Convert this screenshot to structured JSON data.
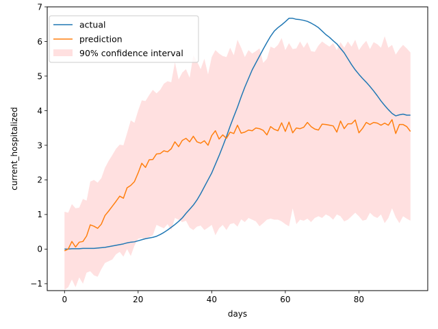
{
  "chart_data": {
    "type": "line",
    "title": "",
    "xlabel": "days",
    "ylabel": "current_hospitalized",
    "xlim": [
      -4.7,
      98.7
    ],
    "ylim": [
      -1.2,
      7.0
    ],
    "x_ticks": [
      0,
      20,
      40,
      60,
      80
    ],
    "y_ticks": [
      -1,
      0,
      1,
      2,
      3,
      4,
      5,
      6,
      7
    ],
    "grid": false,
    "legend_position": "upper-left",
    "series": [
      {
        "name": "actual",
        "color": "#1f77b4",
        "x": [
          0,
          1,
          2,
          3,
          4,
          5,
          6,
          7,
          8,
          9,
          10,
          11,
          12,
          13,
          14,
          15,
          16,
          17,
          18,
          19,
          20,
          21,
          22,
          23,
          24,
          25,
          26,
          27,
          28,
          29,
          30,
          31,
          32,
          33,
          34,
          35,
          36,
          37,
          38,
          39,
          40,
          41,
          42,
          43,
          44,
          45,
          46,
          47,
          48,
          49,
          50,
          51,
          52,
          53,
          54,
          55,
          56,
          57,
          58,
          59,
          60,
          61,
          62,
          63,
          64,
          65,
          66,
          67,
          68,
          69,
          70,
          71,
          72,
          73,
          74,
          75,
          76,
          77,
          78,
          79,
          80,
          81,
          82,
          83,
          84,
          85,
          86,
          87,
          88,
          89,
          90,
          91,
          92,
          93,
          94
        ],
        "values": [
          0,
          0,
          0.01,
          0.01,
          0.01,
          0.02,
          0.02,
          0.02,
          0.02,
          0.03,
          0.04,
          0.05,
          0.07,
          0.09,
          0.11,
          0.13,
          0.15,
          0.18,
          0.2,
          0.21,
          0.24,
          0.27,
          0.3,
          0.32,
          0.34,
          0.37,
          0.42,
          0.48,
          0.55,
          0.63,
          0.71,
          0.8,
          0.9,
          1.03,
          1.15,
          1.27,
          1.42,
          1.6,
          1.8,
          2.0,
          2.2,
          2.45,
          2.7,
          2.97,
          3.25,
          3.55,
          3.83,
          4.1,
          4.4,
          4.68,
          4.93,
          5.18,
          5.38,
          5.58,
          5.78,
          5.97,
          6.15,
          6.3,
          6.4,
          6.48,
          6.57,
          6.67,
          6.67,
          6.64,
          6.63,
          6.61,
          6.58,
          6.53,
          6.47,
          6.4,
          6.3,
          6.2,
          6.12,
          6.02,
          5.93,
          5.8,
          5.67,
          5.5,
          5.33,
          5.18,
          5.05,
          4.93,
          4.82,
          4.7,
          4.57,
          4.43,
          4.28,
          4.15,
          4.03,
          3.92,
          3.85,
          3.88,
          3.9,
          3.87,
          3.87
        ]
      },
      {
        "name": "prediction",
        "color": "#ff7f0e",
        "x": [
          0,
          1,
          2,
          3,
          4,
          5,
          6,
          7,
          8,
          9,
          10,
          11,
          12,
          13,
          14,
          15,
          16,
          17,
          18,
          19,
          20,
          21,
          22,
          23,
          24,
          25,
          26,
          27,
          28,
          29,
          30,
          31,
          32,
          33,
          34,
          35,
          36,
          37,
          38,
          39,
          40,
          41,
          42,
          43,
          44,
          45,
          46,
          47,
          48,
          49,
          50,
          51,
          52,
          53,
          54,
          55,
          56,
          57,
          58,
          59,
          60,
          61,
          62,
          63,
          64,
          65,
          66,
          67,
          68,
          69,
          70,
          71,
          72,
          73,
          74,
          75,
          76,
          77,
          78,
          79,
          80,
          81,
          82,
          83,
          84,
          85,
          86,
          87,
          88,
          89,
          90,
          91,
          92,
          93,
          94
        ],
        "values": [
          -0.05,
          0.0,
          0.22,
          0.06,
          0.2,
          0.22,
          0.38,
          0.7,
          0.66,
          0.6,
          0.72,
          0.97,
          1.1,
          1.24,
          1.38,
          1.53,
          1.47,
          1.77,
          1.84,
          1.95,
          2.2,
          2.48,
          2.36,
          2.58,
          2.59,
          2.75,
          2.76,
          2.84,
          2.81,
          2.9,
          3.1,
          2.96,
          3.14,
          3.2,
          3.1,
          3.26,
          3.1,
          3.06,
          3.13,
          3.0,
          3.28,
          3.42,
          3.18,
          3.3,
          3.2,
          3.38,
          3.34,
          3.58,
          3.35,
          3.38,
          3.44,
          3.42,
          3.5,
          3.48,
          3.43,
          3.3,
          3.54,
          3.46,
          3.42,
          3.65,
          3.4,
          3.67,
          3.36,
          3.5,
          3.48,
          3.52,
          3.66,
          3.54,
          3.47,
          3.44,
          3.61,
          3.6,
          3.58,
          3.56,
          3.38,
          3.7,
          3.48,
          3.62,
          3.62,
          3.73,
          3.36,
          3.49,
          3.66,
          3.6,
          3.66,
          3.64,
          3.58,
          3.64,
          3.58,
          3.74,
          3.34,
          3.6,
          3.6,
          3.54,
          3.4
        ]
      }
    ],
    "band": {
      "name": "90% confidence interval",
      "color": "#ff9999",
      "x": [
        0,
        1,
        2,
        3,
        4,
        5,
        6,
        7,
        8,
        9,
        10,
        11,
        12,
        13,
        14,
        15,
        16,
        17,
        18,
        19,
        20,
        21,
        22,
        23,
        24,
        25,
        26,
        27,
        28,
        29,
        30,
        31,
        32,
        33,
        34,
        35,
        36,
        37,
        38,
        39,
        40,
        41,
        42,
        43,
        44,
        45,
        46,
        47,
        48,
        49,
        50,
        51,
        52,
        53,
        54,
        55,
        56,
        57,
        58,
        59,
        60,
        61,
        62,
        63,
        64,
        65,
        66,
        67,
        68,
        69,
        70,
        71,
        72,
        73,
        74,
        75,
        76,
        77,
        78,
        79,
        80,
        81,
        82,
        83,
        84,
        85,
        86,
        87,
        88,
        89,
        90,
        91,
        92,
        93,
        94
      ],
      "lower": [
        -1.18,
        -1.1,
        -0.88,
        -1.1,
        -0.82,
        -1.0,
        -0.68,
        -0.64,
        -0.76,
        -0.8,
        -0.58,
        -0.4,
        -0.35,
        -0.3,
        -0.15,
        -0.08,
        -0.22,
        0.0,
        -0.2,
        0.1,
        0.3,
        0.32,
        0.28,
        0.35,
        0.4,
        0.7,
        0.65,
        0.6,
        0.72,
        0.55,
        0.9,
        0.85,
        0.78,
        0.82,
        0.62,
        0.55,
        0.65,
        0.68,
        0.55,
        0.62,
        0.7,
        0.4,
        0.6,
        0.7,
        0.55,
        0.72,
        0.75,
        0.65,
        0.86,
        0.78,
        0.9,
        0.85,
        0.8,
        0.66,
        0.75,
        0.85,
        0.88,
        0.85,
        0.85,
        0.8,
        0.72,
        0.66,
        1.18,
        0.72,
        0.85,
        0.82,
        0.88,
        0.78,
        0.9,
        0.95,
        0.9,
        1.0,
        0.95,
        0.85,
        1.0,
        0.95,
        0.8,
        0.85,
        0.95,
        1.05,
        0.95,
        0.82,
        0.85,
        1.05,
        0.95,
        0.9,
        1.0,
        0.75,
        0.9,
        1.18,
        0.92,
        0.75,
        0.95,
        0.88,
        0.82
      ],
      "upper": [
        1.08,
        1.05,
        1.3,
        1.18,
        1.2,
        1.45,
        1.4,
        1.95,
        2.0,
        1.92,
        2.05,
        2.35,
        2.55,
        2.72,
        2.9,
        3.02,
        3.0,
        3.35,
        3.72,
        3.65,
        4.0,
        4.3,
        4.28,
        4.45,
        4.6,
        4.5,
        4.6,
        4.78,
        4.85,
        4.82,
        5.4,
        4.9,
        5.1,
        5.2,
        4.95,
        5.6,
        5.42,
        5.2,
        5.5,
        5.05,
        5.55,
        5.75,
        5.65,
        5.58,
        5.55,
        5.82,
        5.6,
        6.05,
        5.82,
        5.55,
        5.75,
        5.65,
        5.72,
        5.8,
        5.38,
        5.5,
        5.85,
        5.8,
        5.9,
        6.1,
        5.75,
        5.95,
        5.78,
        5.8,
        6.0,
        5.82,
        5.98,
        5.72,
        5.7,
        5.88,
        6.0,
        5.92,
        5.85,
        5.95,
        5.75,
        5.98,
        5.82,
        6.0,
        5.85,
        6.05,
        5.75,
        5.9,
        6.02,
        5.78,
        5.98,
        5.92,
        5.82,
        6.15,
        5.82,
        5.9,
        5.62,
        5.78,
        5.9,
        5.8,
        5.68
      ]
    }
  }
}
